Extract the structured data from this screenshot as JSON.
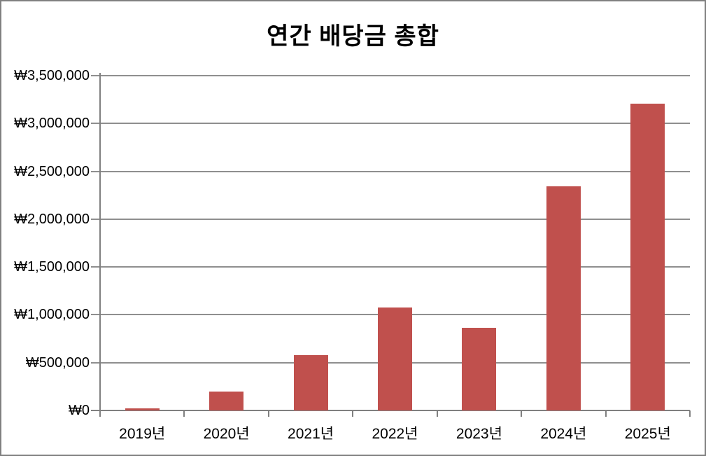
{
  "chart_data": {
    "type": "bar",
    "title": "연간 배당금 총합",
    "categories": [
      "2019년",
      "2020년",
      "2021년",
      "2022년",
      "2023년",
      "2024년",
      "2025년"
    ],
    "values": [
      20000,
      200000,
      575000,
      1080000,
      865000,
      2340000,
      3210000
    ],
    "series_name": "연간 배당금",
    "currency": "₩",
    "y_tick_labels": [
      "₩0",
      "₩500,000",
      "₩1,000,000",
      "₩1,500,000",
      "₩2,000,000",
      "₩2,500,000",
      "₩3,000,000",
      "₩3,500,000"
    ],
    "y_tick_values": [
      0,
      500000,
      1000000,
      1500000,
      2000000,
      2500000,
      3000000,
      3500000
    ],
    "ylim": [
      0,
      3500000
    ],
    "y_step": 500000,
    "xlabel": "",
    "ylabel": "",
    "grid": true,
    "legend": false,
    "colors": {
      "bar_fill": "#C0504D",
      "gridline": "#8F8F8F",
      "axis": "#808080",
      "frame_border": "#808080",
      "background": "#FFFFFF",
      "text": "#000000"
    }
  }
}
